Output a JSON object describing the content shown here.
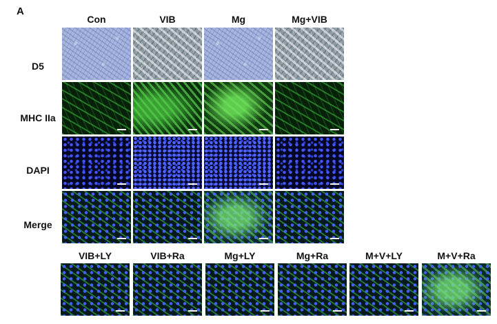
{
  "panel_letter": "A",
  "columns": [
    "Con",
    "VIB",
    "Mg",
    "Mg+VIB"
  ],
  "rows": [
    "D5",
    "MHC IIa",
    "DAPI",
    "Merge"
  ],
  "bottom_labels": [
    "VIB+LY",
    "VIB+Ra",
    "Mg+LY",
    "Mg+Ra",
    "M+V+LY",
    "M+V+Ra"
  ],
  "colors": {
    "brightfield_blue": "#a9b7e0",
    "brightfield_gray": "#8e9aa2",
    "myosin_green": "#3cbe3c",
    "dapi_blue": "#4658ff"
  }
}
